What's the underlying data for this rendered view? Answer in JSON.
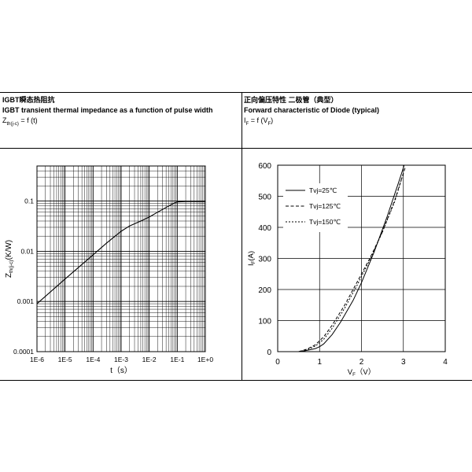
{
  "panels": [
    {
      "title_cn": "IGBT瞬态热阻抗",
      "title_en": "IGBT transient thermal impedance as a function of pulse width",
      "formula": {
        "lhs": "Z",
        "lhs_sub": "th(j-c)",
        "rhs": " = f (t)"
      }
    },
    {
      "title_cn": "正向偏压特性 二极管（典型）",
      "title_en": "Forward characteristic of Diode (typical)",
      "formula": {
        "lhs": "I",
        "lhs_sub": "F",
        "mid": " = f (V",
        "mid_sub": "F",
        "end": ")"
      }
    }
  ],
  "chart_data": [
    {
      "type": "line",
      "xscale": "log",
      "yscale": "log",
      "xlim": [
        1e-06,
        1
      ],
      "ylim": [
        0.0001,
        0.5
      ],
      "xticks": [
        {
          "v": 1e-06,
          "label": "1E-6"
        },
        {
          "v": 1e-05,
          "label": "1E-5"
        },
        {
          "v": 0.0001,
          "label": "1E-4"
        },
        {
          "v": 0.001,
          "label": "1E-3"
        },
        {
          "v": 0.01,
          "label": "1E-2"
        },
        {
          "v": 0.1,
          "label": "1E-1"
        },
        {
          "v": 1,
          "label": "1E+0"
        }
      ],
      "yticks": [
        {
          "v": 0.0001,
          "label": "0.0001"
        },
        {
          "v": 0.001,
          "label": "0.001"
        },
        {
          "v": 0.01,
          "label": "0.01"
        },
        {
          "v": 0.1,
          "label": "0.1"
        }
      ],
      "xlabel": "t（s）",
      "ylabel": {
        "main": "Z",
        "sub": "th(j-c)",
        "end": "(K/W)"
      },
      "grid": true,
      "series": [
        {
          "x": [
            1e-06,
            1e-05,
            0.0001,
            0.0003,
            0.001,
            0.002,
            0.005,
            0.01,
            0.02,
            0.05,
            0.08,
            0.1,
            0.2,
            1
          ],
          "y": [
            0.0009,
            0.0028,
            0.0085,
            0.0145,
            0.025,
            0.032,
            0.04,
            0.048,
            0.06,
            0.08,
            0.092,
            0.096,
            0.098,
            0.098
          ]
        }
      ]
    },
    {
      "type": "line",
      "xlim": [
        0,
        4
      ],
      "ylim": [
        0,
        600
      ],
      "xticks": [
        0,
        1,
        2,
        3,
        4
      ],
      "yticks": [
        0,
        100,
        200,
        300,
        400,
        500,
        600
      ],
      "xlabel": {
        "main": "V",
        "sub": "F",
        "end": "（V）"
      },
      "ylabel": {
        "main": "I",
        "sub": "F",
        "end": "(A)"
      },
      "grid": true,
      "legend_position": "top-left",
      "series": [
        {
          "name": "Tvj=25℃",
          "style": "solid",
          "x": [
            0.55,
            0.7,
            0.9,
            1.0,
            1.1,
            1.3,
            1.5,
            1.8,
            2.0,
            2.3,
            2.6,
            2.9,
            3.02
          ],
          "y": [
            0,
            4,
            10,
            16,
            25,
            55,
            95,
            165,
            222,
            320,
            430,
            550,
            600
          ]
        },
        {
          "name": "Tvj=125℃",
          "style": "dashed",
          "x": [
            0.5,
            0.7,
            0.9,
            1.1,
            1.3,
            1.6,
            1.9,
            2.2,
            2.5,
            2.8,
            3.05
          ],
          "y": [
            0,
            8,
            22,
            48,
            85,
            150,
            225,
            300,
            385,
            490,
            595
          ]
        },
        {
          "name": "Tvj=150℃",
          "style": "dotted",
          "x": [
            0.5,
            0.7,
            0.9,
            1.1,
            1.3,
            1.6,
            1.9,
            2.2,
            2.5,
            2.8,
            3.0
          ],
          "y": [
            0,
            6,
            18,
            40,
            75,
            140,
            215,
            295,
            385,
            485,
            575
          ]
        }
      ]
    }
  ]
}
